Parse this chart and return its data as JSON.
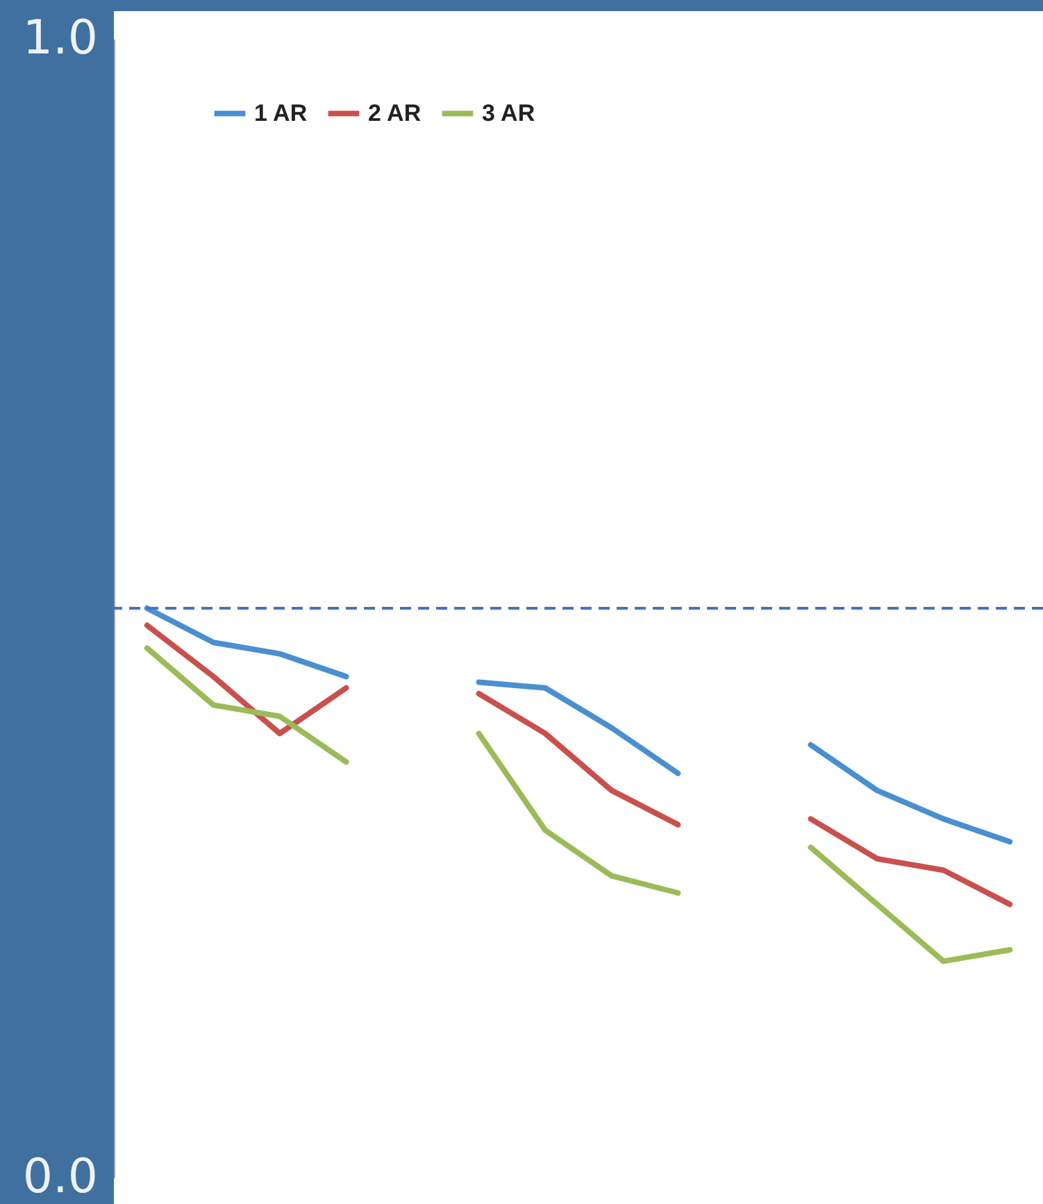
{
  "chart_data": {
    "type": "line",
    "categories": [
      null,
      null,
      null,
      null,
      null,
      null,
      null,
      null,
      null,
      null,
      null,
      null,
      null,
      null
    ],
    "series": [
      {
        "name": "1 AR",
        "color": "#4a8fd0",
        "values": [
          0.5,
          0.47,
          0.46,
          0.44,
          null,
          0.435,
          0.43,
          0.395,
          0.355,
          null,
          0.38,
          0.34,
          0.315,
          0.295
        ]
      },
      {
        "name": "2 AR",
        "color": "#c9504d",
        "values": [
          0.485,
          0.44,
          0.39,
          0.43,
          null,
          0.425,
          0.39,
          0.34,
          0.31,
          null,
          0.315,
          0.28,
          0.27,
          0.24
        ]
      },
      {
        "name": "3 AR",
        "color": "#9bbb59",
        "values": [
          0.465,
          0.415,
          0.405,
          0.365,
          null,
          0.39,
          0.305,
          0.265,
          0.25,
          null,
          0.29,
          0.24,
          0.19,
          0.2
        ]
      }
    ],
    "ylim": [
      0,
      1
    ],
    "yticks": [
      {
        "value": 0,
        "label": "0.0"
      },
      {
        "value": 1,
        "label": "1.0"
      }
    ],
    "ref_lines": [
      {
        "axis": "y",
        "value": 0.5,
        "color": "#4472c4",
        "line_style": "dashed"
      }
    ],
    "legend": "top left",
    "grid": false,
    "tick_labels": "y",
    "marker": "none",
    "line_style": "solid"
  }
}
